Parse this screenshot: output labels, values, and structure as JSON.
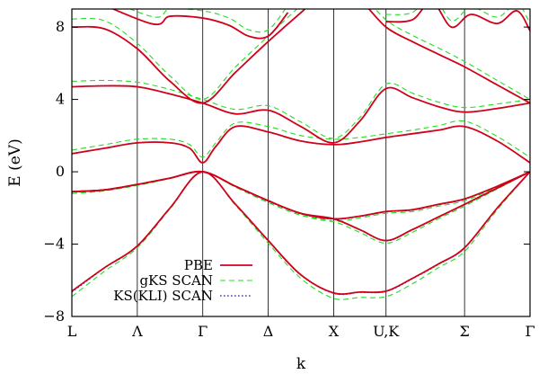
{
  "chart_data": {
    "type": "line",
    "title": "",
    "xlabel": "k",
    "ylabel": "E (eV)",
    "ylim": [
      -8,
      9
    ],
    "yticks": [
      -8,
      -4,
      0,
      4,
      8
    ],
    "grid": false,
    "legend_position": "bottom-center",
    "k_points": [
      {
        "label": "L",
        "k": 0.0
      },
      {
        "label": "Λ",
        "k": 1.0
      },
      {
        "label": "Γ",
        "k": 2.0
      },
      {
        "label": "Δ",
        "k": 3.0
      },
      {
        "label": "X",
        "k": 4.0
      },
      {
        "label": "U,K",
        "k": 4.8
      },
      {
        "label": "Σ",
        "k": 6.0
      },
      {
        "label": "Γ",
        "k": 7.0
      }
    ],
    "series": [
      {
        "name": "PBE",
        "color": "#d0021b",
        "style": "solid",
        "bands": [
          {
            "k": [
              0,
              0.5,
              1,
              1.5,
              2,
              2.5,
              3,
              3.5,
              4,
              4.4,
              4.8,
              5.2,
              5.6,
              6,
              6.5,
              7
            ],
            "E": [
              -6.6,
              -5.3,
              -4.1,
              -2.0,
              0,
              -1.8,
              -3.8,
              -5.7,
              -6.7,
              -6.65,
              -6.6,
              -5.9,
              -5.1,
              -4.2,
              -2.0,
              0
            ]
          },
          {
            "k": [
              0,
              0.5,
              1,
              1.5,
              2,
              2.5,
              3,
              3.5,
              4,
              4.4,
              4.8,
              5.2,
              5.6,
              6,
              6.5,
              7
            ],
            "E": [
              -1.1,
              -1.0,
              -0.7,
              -0.35,
              0,
              -0.8,
              -1.6,
              -2.3,
              -2.6,
              -2.45,
              -2.2,
              -2.1,
              -1.8,
              -1.5,
              -0.8,
              0
            ]
          },
          {
            "k": [
              0,
              0.5,
              1,
              1.5,
              2,
              2.5,
              3,
              3.5,
              4,
              4.4,
              4.8,
              5.2,
              5.6,
              6,
              6.5,
              7
            ],
            "E": [
              -1.1,
              -1.0,
              -0.7,
              -0.35,
              0,
              -0.8,
              -1.6,
              -2.3,
              -2.6,
              -3.2,
              -3.8,
              -3.2,
              -2.5,
              -1.8,
              -0.9,
              0
            ]
          },
          {
            "k": [
              0,
              0.5,
              1,
              1.5,
              1.8,
              2,
              2.2,
              2.5,
              3,
              3.5,
              4,
              4.4,
              4.8,
              5.2,
              5.6,
              6,
              6.5,
              7
            ],
            "E": [
              1.0,
              1.3,
              1.6,
              1.6,
              1.3,
              0.5,
              1.4,
              2.5,
              2.2,
              1.7,
              1.5,
              1.65,
              1.9,
              2.1,
              2.3,
              2.5,
              1.7,
              0.5
            ]
          },
          {
            "k": [
              0,
              0.5,
              1,
              1.5,
              2,
              2.5,
              3,
              3.5,
              4,
              4.4,
              4.8,
              5.2,
              5.6,
              6,
              6.5,
              7
            ],
            "E": [
              4.7,
              4.75,
              4.7,
              4.3,
              3.8,
              3.2,
              3.4,
              2.5,
              1.6,
              2.8,
              4.6,
              4.1,
              3.6,
              3.3,
              3.5,
              3.8
            ]
          },
          {
            "k": [
              0,
              0.5,
              1,
              1.5,
              2,
              2.5,
              3,
              3.5,
              4,
              4.4,
              4.8,
              5.2,
              5.6,
              6,
              6.5,
              7
            ],
            "E": [
              8.0,
              7.9,
              6.8,
              5.0,
              3.8,
              5.5,
              7.2,
              8.8,
              10.3,
              9.5,
              8.0,
              7.2,
              6.5,
              5.8,
              4.8,
              3.8
            ]
          },
          {
            "k": [
              0,
              1.2,
              1.5,
              2,
              2.4,
              2.7,
              3,
              3.3
            ],
            "E": [
              10,
              8.2,
              8.6,
              8.5,
              8.1,
              7.5,
              7.5,
              8.8
            ]
          },
          {
            "k": [
              4.8,
              5.2,
              5.5,
              5.8,
              6.1,
              6.5,
              6.8,
              7
            ],
            "E": [
              8.3,
              8.4,
              9.4,
              8.0,
              8.7,
              8.2,
              8.9,
              7.8
            ]
          }
        ]
      },
      {
        "name": "gKS SCAN",
        "color": "#1fe01f",
        "style": "dashed",
        "bands": [
          {
            "k": [
              0,
              0.5,
              1,
              1.5,
              2,
              2.5,
              3,
              3.5,
              4,
              4.4,
              4.8,
              5.2,
              5.6,
              6,
              6.5,
              7
            ],
            "E": [
              -6.9,
              -5.5,
              -4.2,
              -2.05,
              0,
              -1.85,
              -3.95,
              -5.9,
              -7.0,
              -6.95,
              -6.9,
              -6.2,
              -5.3,
              -4.4,
              -2.1,
              0
            ]
          },
          {
            "k": [
              0,
              0.5,
              1,
              1.5,
              2,
              2.5,
              3,
              3.5,
              4,
              4.4,
              4.8,
              5.2,
              5.6,
              6,
              6.5,
              7
            ],
            "E": [
              -1.2,
              -1.05,
              -0.75,
              -0.37,
              0,
              -0.85,
              -1.7,
              -2.4,
              -2.75,
              -2.55,
              -2.3,
              -2.2,
              -1.9,
              -1.6,
              -0.85,
              0
            ]
          },
          {
            "k": [
              0,
              0.5,
              1,
              1.5,
              2,
              2.5,
              3,
              3.5,
              4,
              4.4,
              4.8,
              5.2,
              5.6,
              6,
              6.5,
              7
            ],
            "E": [
              -1.2,
              -1.05,
              -0.75,
              -0.37,
              0,
              -0.85,
              -1.7,
              -2.4,
              -2.75,
              -3.35,
              -3.95,
              -3.35,
              -2.6,
              -1.9,
              -0.95,
              0
            ]
          },
          {
            "k": [
              0,
              0.5,
              1,
              1.5,
              1.8,
              2,
              2.2,
              2.5,
              3,
              3.5,
              4,
              4.4,
              4.8,
              5.2,
              5.6,
              6,
              6.5,
              7
            ],
            "E": [
              1.2,
              1.5,
              1.8,
              1.8,
              1.5,
              0.8,
              1.6,
              2.7,
              2.5,
              2.0,
              1.8,
              1.9,
              2.1,
              2.3,
              2.55,
              2.8,
              1.95,
              0.8
            ]
          },
          {
            "k": [
              0,
              0.5,
              1,
              1.5,
              2,
              2.5,
              3,
              3.5,
              4,
              4.4,
              4.8,
              5.2,
              5.6,
              6,
              6.5,
              7
            ],
            "E": [
              5.0,
              5.05,
              4.95,
              4.55,
              4.0,
              3.45,
              3.65,
              2.75,
              1.85,
              3.0,
              4.85,
              4.35,
              3.85,
              3.55,
              3.75,
              4.0
            ]
          },
          {
            "k": [
              0,
              0.5,
              1,
              1.5,
              2,
              2.5,
              3,
              3.5,
              4,
              4.4,
              4.8,
              5.2,
              5.6,
              6,
              6.5,
              7
            ],
            "E": [
              8.45,
              8.35,
              7.1,
              5.3,
              4.0,
              5.8,
              7.5,
              9.2,
              10.7,
              9.9,
              8.4,
              7.55,
              6.85,
              6.1,
              5.05,
              4.0
            ]
          },
          {
            "k": [
              0,
              1.2,
              1.5,
              2,
              2.4,
              2.7,
              3,
              3.3
            ],
            "E": [
              10.4,
              8.6,
              9.0,
              8.9,
              8.5,
              7.85,
              7.85,
              9.2
            ]
          },
          {
            "k": [
              4.8,
              5.2,
              5.5,
              5.8,
              6.1,
              6.5,
              6.8,
              7
            ],
            "E": [
              8.7,
              8.8,
              9.8,
              8.35,
              9.1,
              8.55,
              9.3,
              8.2
            ]
          }
        ]
      },
      {
        "name": "KS(KLI) SCAN",
        "color": "#1010ee",
        "style": "dotted",
        "bands": [
          {
            "k": [
              0,
              0.5,
              1,
              1.5,
              2,
              2.5,
              3,
              3.5,
              4,
              4.4,
              4.8,
              5.2,
              5.6,
              6,
              6.5,
              7
            ],
            "E": [
              -6.65,
              -5.32,
              -4.12,
              -2.01,
              0,
              -1.81,
              -3.82,
              -5.72,
              -6.72,
              -6.67,
              -6.62,
              -5.92,
              -5.12,
              -4.22,
              -2.01,
              0
            ]
          },
          {
            "k": [
              0,
              0.5,
              1,
              1.5,
              2,
              2.5,
              3,
              3.5,
              4,
              4.4,
              4.8,
              5.2,
              5.6,
              6,
              6.5,
              7
            ],
            "E": [
              -1.12,
              -1.01,
              -0.71,
              -0.36,
              0,
              -0.81,
              -1.62,
              -2.32,
              -2.62,
              -2.47,
              -2.22,
              -2.12,
              -1.82,
              -1.52,
              -0.81,
              0
            ]
          },
          {
            "k": [
              0,
              0.5,
              1,
              1.5,
              2,
              2.5,
              3,
              3.5,
              4,
              4.4,
              4.8,
              5.2,
              5.6,
              6,
              6.5,
              7
            ],
            "E": [
              -1.12,
              -1.01,
              -0.71,
              -0.36,
              0,
              -0.81,
              -1.62,
              -2.32,
              -2.62,
              -3.22,
              -3.82,
              -3.22,
              -2.52,
              -1.82,
              -0.91,
              0
            ]
          },
          {
            "k": [
              0,
              0.5,
              1,
              1.5,
              1.8,
              2,
              2.2,
              2.5,
              3,
              3.5,
              4,
              4.4,
              4.8,
              5.2,
              5.6,
              6,
              6.5,
              7
            ],
            "E": [
              1.0,
              1.3,
              1.6,
              1.6,
              1.3,
              0.5,
              1.4,
              2.5,
              2.2,
              1.7,
              1.5,
              1.65,
              1.9,
              2.1,
              2.3,
              2.5,
              1.7,
              0.5
            ]
          },
          {
            "k": [
              0,
              0.5,
              1,
              1.5,
              2,
              2.5,
              3,
              3.5,
              4,
              4.4,
              4.8,
              5.2,
              5.6,
              6,
              6.5,
              7
            ],
            "E": [
              4.7,
              4.75,
              4.7,
              4.3,
              3.8,
              3.2,
              3.4,
              2.5,
              1.6,
              2.8,
              4.6,
              4.1,
              3.6,
              3.3,
              3.5,
              3.8
            ]
          },
          {
            "k": [
              0,
              0.5,
              1,
              1.5,
              2,
              2.5,
              3,
              3.5,
              4,
              4.4,
              4.8,
              5.2,
              5.6,
              6,
              6.5,
              7
            ],
            "E": [
              8.0,
              7.9,
              6.8,
              5.0,
              3.8,
              5.5,
              7.2,
              8.8,
              10.3,
              9.5,
              8.0,
              7.2,
              6.5,
              5.8,
              4.8,
              3.8
            ]
          },
          {
            "k": [
              0,
              1.2,
              1.5,
              2,
              2.4,
              2.7,
              3,
              3.3
            ],
            "E": [
              10,
              8.2,
              8.6,
              8.5,
              8.1,
              7.5,
              7.5,
              8.8
            ]
          },
          {
            "k": [
              4.8,
              5.2,
              5.5,
              5.8,
              6.1,
              6.5,
              6.8,
              7
            ],
            "E": [
              8.3,
              8.4,
              9.4,
              8.0,
              8.7,
              8.2,
              8.9,
              7.8
            ]
          }
        ]
      }
    ]
  }
}
